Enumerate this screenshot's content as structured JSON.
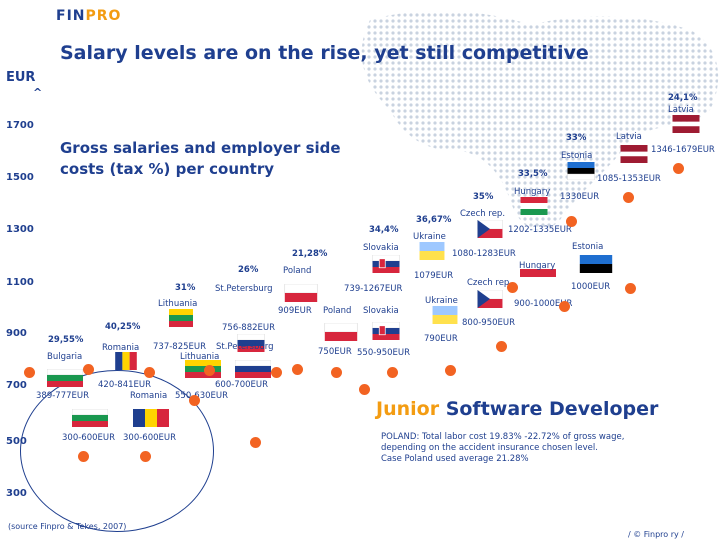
{
  "header": {
    "logo_text_a": "FIN",
    "logo_text_b": "PRO",
    "title": "Salary levels are on the rise, yet still competitive",
    "subtitle_line1": "Gross salaries and employer side",
    "subtitle_line2": "costs (tax %) per country"
  },
  "chart_data": {
    "type": "scatter",
    "title": "Salary levels are on the rise, yet still competitive",
    "subtitle": "Gross salaries and employer side costs (tax %) per country",
    "ylabel": "EUR",
    "ylabel_caret": "^",
    "ylim": [
      300,
      1700
    ],
    "yticks": [
      300,
      500,
      700,
      900,
      1100,
      1300,
      1500,
      1700
    ],
    "points": [
      {
        "country": "Bulgaria",
        "range": "300-600EUR",
        "low": 300,
        "high": 600,
        "tax": "29,55%"
      },
      {
        "country": "Romania",
        "range": "300-600EUR",
        "low": 300,
        "high": 600,
        "tax": "40,25%"
      },
      {
        "country": "Bulgaria",
        "range": "389-777EUR",
        "low": 389,
        "high": 777,
        "tax": ""
      },
      {
        "country": "Romania",
        "range": "420-841EUR",
        "low": 420,
        "high": 841,
        "tax": ""
      },
      {
        "country": "Lithuania",
        "range": "550-630EUR",
        "low": 550,
        "high": 630,
        "tax": "31%"
      },
      {
        "country": "St.Petersburg",
        "range": "600-700EUR",
        "low": 600,
        "high": 700,
        "tax": "26%"
      },
      {
        "country": "Lithuania",
        "range": "737-825EUR",
        "low": 737,
        "high": 825,
        "tax": ""
      },
      {
        "country": "St.Petersburg",
        "range": "756-882EUR",
        "low": 756,
        "high": 882,
        "tax": ""
      },
      {
        "country": "Poland",
        "range": "750EUR",
        "low": 750,
        "high": 750,
        "tax": "21,28%"
      },
      {
        "country": "Slovakia",
        "range": "550-950EUR",
        "low": 550,
        "high": 950,
        "tax": "34,4%"
      },
      {
        "country": "Ukraine",
        "range": "790EUR",
        "low": 790,
        "high": 790,
        "tax": "36,67%"
      },
      {
        "country": "Czech rep.",
        "range": "800-950EUR",
        "low": 800,
        "high": 950,
        "tax": "35%"
      },
      {
        "country": "Hungary",
        "range": "900-1000EUR",
        "low": 900,
        "high": 1000,
        "tax": "33,5%"
      },
      {
        "country": "Estonia",
        "range": "1000EUR",
        "low": 1000,
        "high": 1000,
        "tax": "33%"
      },
      {
        "country": "Latvia",
        "range": "1085-1353EUR",
        "low": 1085,
        "high": 1353,
        "tax": "24,1%"
      },
      {
        "country": "Poland",
        "range": "909EUR",
        "low": 909,
        "high": 909,
        "tax": ""
      },
      {
        "country": "Slovakia",
        "range": "739-1267EUR",
        "low": 739,
        "high": 1267,
        "tax": ""
      },
      {
        "country": "Ukraine",
        "range": "1079EUR",
        "low": 1079,
        "high": 1079,
        "tax": ""
      },
      {
        "country": "Czech rep.",
        "range": "1080-1283EUR",
        "low": 1080,
        "high": 1283,
        "tax": ""
      },
      {
        "country": "Hungary",
        "range": "1202-1335EUR",
        "low": 1202,
        "high": 1335,
        "tax": ""
      },
      {
        "country": "Estonia",
        "range": "1330EUR",
        "low": 1330,
        "high": 1330,
        "tax": ""
      },
      {
        "country": "Latvia",
        "range": "1346-1679EUR",
        "low": 1346,
        "high": 1679,
        "tax": ""
      }
    ]
  },
  "labels": {
    "bulgaria": "Bulgaria",
    "romania": "Romania",
    "lithuania": "Lithuania",
    "st_petersburg": "St.Petersburg",
    "poland": "Poland",
    "slovakia": "Slovakia",
    "ukraine": "Ukraine",
    "czech": "Czech rep.",
    "hungary": "Hungary",
    "estonia": "Estonia",
    "latvia": "Latvia",
    "pct_bulgaria": "29,55%",
    "pct_romania": "40,25%",
    "pct_lithuania": "31%",
    "pct_stp": "26%",
    "pct_poland": "21,28%",
    "pct_slovakia": "34,4%",
    "pct_ukraine": "36,67%",
    "pct_czech": "35%",
    "pct_hungary": "33,5%",
    "pct_estonia": "33%",
    "pct_latvia": "24,1%",
    "r_300_600_a": "300-600EUR",
    "r_300_600_b": "300-600EUR",
    "r_389_777": "389-777EUR",
    "r_420_841": "420-841EUR",
    "r_550_630": "550-630EUR",
    "r_600_700": "600-700EUR",
    "r_737_825": "737-825EUR",
    "r_756_882": "756-882EUR",
    "r_750": "750EUR",
    "r_550_950": "550-950EUR",
    "r_790": "790EUR",
    "r_800_950": "800-950EUR",
    "r_900_1000": "900-1000EUR",
    "r_1000": "1000EUR",
    "r_1085_1353": "1085-1353EUR",
    "r_909": "909EUR",
    "r_739_1267": "739-1267EUR",
    "r_1079": "1079EUR",
    "r_1080_1283": "1080-1283EUR",
    "r_1202_1335": "1202-1335EUR",
    "r_1330": "1330EUR",
    "r_1346_1679": "1346-1679EUR"
  },
  "role": {
    "junior": "Junior",
    "rest": "Software Developer"
  },
  "note": {
    "line1": "POLAND: Total labor cost 19.83% -22.72% of gross wage,",
    "line2": "depending on the accident insurance chosen level.",
    "line3": "Case Poland used average 21.28%"
  },
  "footer": {
    "source": "(source Finpro & Tekes, 2007)",
    "copyright": "/ © Finpro ry /"
  },
  "colors": {
    "accent": "#1f3f8f",
    "dot": "#f26322",
    "brand_orange": "#f39c12"
  }
}
